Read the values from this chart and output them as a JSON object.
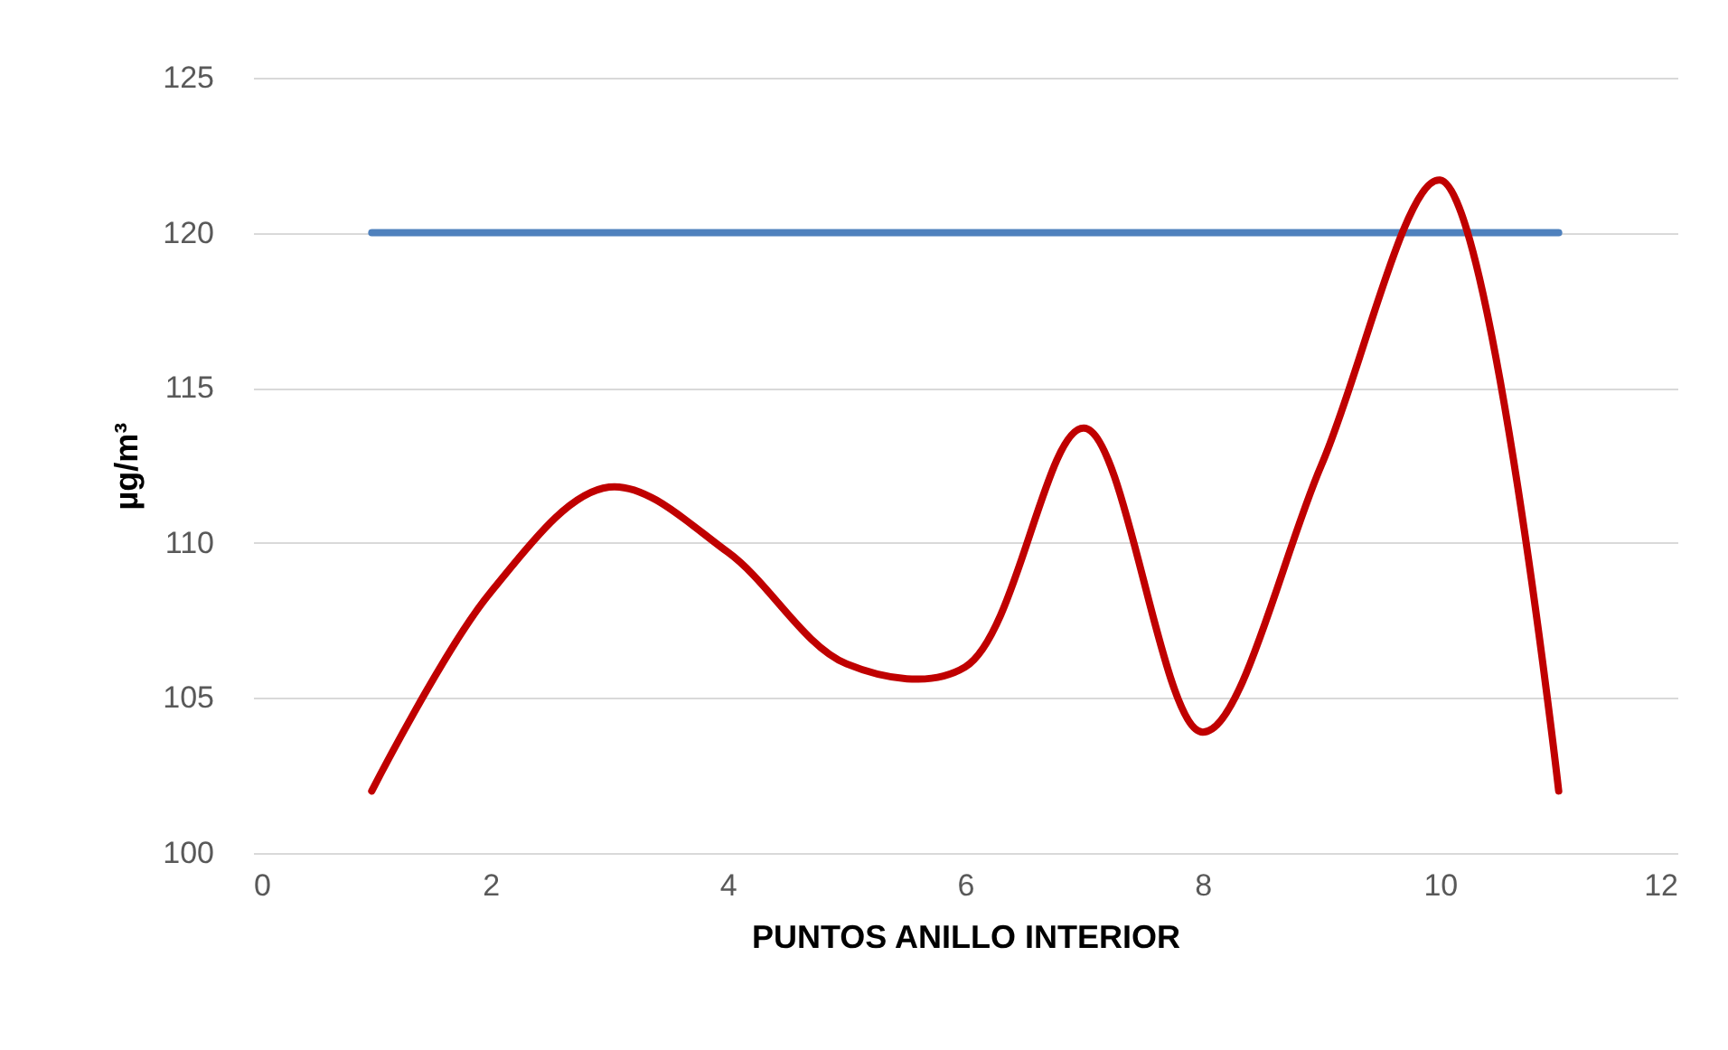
{
  "chart_data": {
    "type": "line",
    "xlabel": "PUNTOS ANILLO INTERIOR",
    "ylabel": "µg/m³",
    "x": [
      1,
      2,
      3,
      4,
      5,
      6,
      7,
      8,
      9,
      10,
      11
    ],
    "series": [
      {
        "color": "#4f81bd",
        "values": [
          120,
          120,
          120,
          120,
          120,
          120,
          120,
          120,
          120,
          120,
          120
        ]
      },
      {
        "color": "#c00000",
        "values": [
          102,
          108.4,
          111.8,
          109.7,
          106.1,
          106,
          113.7,
          103.9,
          112.5,
          121.7,
          102
        ]
      }
    ],
    "xlim": [
      0,
      12
    ],
    "xticks": [
      0,
      2,
      4,
      6,
      8,
      10,
      12
    ],
    "ylim": [
      100,
      125
    ],
    "yticks": [
      100,
      105,
      110,
      115,
      120,
      125
    ],
    "grid": "y",
    "marker": "none",
    "line_style": "solid"
  }
}
